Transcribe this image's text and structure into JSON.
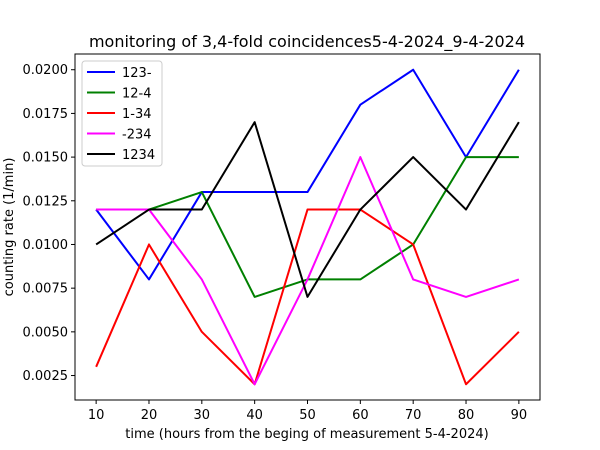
{
  "chart_data": {
    "type": "line",
    "title": "monitoring of 3,4-fold coincidences5-4-2024_9-4-2024",
    "xlabel": "time (hours from the beging of measurement 5-4-2024)",
    "ylabel": "counting rate (1/min)",
    "x": [
      10,
      20,
      30,
      40,
      50,
      60,
      70,
      80,
      90
    ],
    "xlim": [
      6,
      94
    ],
    "ylim": [
      0.0011,
      0.0209
    ],
    "x_ticks": [
      10,
      20,
      30,
      40,
      50,
      60,
      70,
      80,
      90
    ],
    "x_tick_labels": [
      "10",
      "20",
      "30",
      "40",
      "50",
      "60",
      "70",
      "80",
      "90"
    ],
    "y_ticks": [
      0.0025,
      0.005,
      0.0075,
      0.01,
      0.0125,
      0.015,
      0.0175,
      0.02
    ],
    "y_tick_labels": [
      "0.0025",
      "0.0050",
      "0.0075",
      "0.0100",
      "0.0125",
      "0.0150",
      "0.0175",
      "0.0200"
    ],
    "grid": false,
    "legend_position": "upper-left",
    "series": [
      {
        "name": "123-",
        "color": "#0000ff",
        "values": [
          0.012,
          0.008,
          0.013,
          0.013,
          0.013,
          0.018,
          0.02,
          0.015,
          0.02
        ]
      },
      {
        "name": "12-4",
        "color": "#008000",
        "values": [
          0.012,
          0.012,
          0.013,
          0.007,
          0.008,
          0.008,
          0.01,
          0.015,
          0.015
        ]
      },
      {
        "name": "1-34",
        "color": "#ff0000",
        "values": [
          0.003,
          0.01,
          0.005,
          0.002,
          0.012,
          0.012,
          0.01,
          0.002,
          0.005
        ]
      },
      {
        "name": "-234",
        "color": "#ff00ff",
        "values": [
          0.012,
          0.012,
          0.008,
          0.002,
          0.008,
          0.015,
          0.008,
          0.007,
          0.008
        ]
      },
      {
        "name": "1234",
        "color": "#000000",
        "values": [
          0.01,
          0.012,
          0.012,
          0.017,
          0.007,
          0.012,
          0.015,
          0.012,
          0.017
        ]
      }
    ]
  }
}
